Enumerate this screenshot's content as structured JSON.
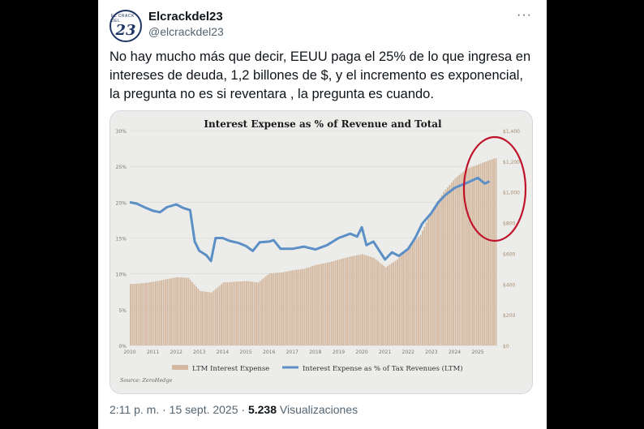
{
  "author": {
    "name": "Elcrackdel23",
    "handle": "@elcrackdel23",
    "avatar_text": "23",
    "avatar_small_text": "EL CRACK DEL"
  },
  "tweet_text": "No hay mucho más que decir, EEUU paga el 25% de lo que ingresa en intereses de deuda, 1,2 billones de $, y el incremento es exponencial, la pregunta no es si reventara , la pregunta es cuando.",
  "more_icon": "more-horizontal-icon",
  "meta": {
    "time_date": "2:11 p. m. · 15 sept. 2025 · ",
    "views_count": "5.238",
    "views_label": " Visualizaciones"
  },
  "colors": {
    "bar": "#d4b9a0",
    "line": "#5b8fc5",
    "annotation": "#c0142a",
    "chart_bg": "#ececea"
  },
  "chart_data": {
    "type": "bar+line",
    "title": "Interest Expense as % of Revenue and Total",
    "source": "Source: ZeroHedge",
    "x_ticks": [
      "2010",
      "2011",
      "2012",
      "2013",
      "2014",
      "2015",
      "2016",
      "2017",
      "2018",
      "2019",
      "2020",
      "2021",
      "2022",
      "2023",
      "2024",
      "2025"
    ],
    "xlim": [
      2010,
      2025.8
    ],
    "y_left_ticks": [
      "30%",
      "25%",
      "20%",
      "15%",
      "10%",
      "5%",
      "0%"
    ],
    "y_left_range": [
      0,
      30
    ],
    "y_right_ticks": [
      "$1,400",
      "$1,200",
      "$1,000",
      "$800",
      "$600",
      "$400",
      "$200",
      "$0"
    ],
    "y_right_range": [
      0,
      1400
    ],
    "legend_position": "bottom",
    "series": [
      {
        "name": "LTM Interest Expense",
        "type": "bar",
        "axis": "right",
        "x": [
          2010,
          2010.5,
          2011,
          2011.5,
          2012,
          2012.5,
          2013,
          2013.5,
          2014,
          2014.5,
          2015,
          2015.5,
          2016,
          2016.5,
          2017,
          2017.5,
          2018,
          2018.5,
          2019,
          2019.5,
          2020,
          2020.5,
          2021,
          2021.5,
          2022,
          2022.5,
          2023,
          2023.5,
          2024,
          2024.5,
          2025,
          2025.7
        ],
        "values": [
          400,
          405,
          415,
          430,
          445,
          440,
          355,
          345,
          410,
          415,
          420,
          410,
          470,
          475,
          490,
          500,
          525,
          540,
          560,
          580,
          595,
          570,
          510,
          560,
          640,
          720,
          880,
          1000,
          1090,
          1150,
          1180,
          1220
        ]
      },
      {
        "name": "Interest Expense as % of Tax Revenues (LTM)",
        "type": "line",
        "axis": "left",
        "x": [
          2010,
          2010.3,
          2010.7,
          2011,
          2011.3,
          2011.6,
          2012,
          2012.3,
          2012.6,
          2012.8,
          2013,
          2013.3,
          2013.5,
          2013.7,
          2014,
          2014.3,
          2014.7,
          2015,
          2015.3,
          2015.6,
          2016,
          2016.2,
          2016.5,
          2017,
          2017.5,
          2018,
          2018.5,
          2019,
          2019.5,
          2019.8,
          2020,
          2020.2,
          2020.5,
          2021,
          2021.3,
          2021.6,
          2022,
          2022.3,
          2022.6,
          2023,
          2023.3,
          2023.6,
          2024,
          2024.3,
          2024.6,
          2025,
          2025.3,
          2025.5
        ],
        "values": [
          20,
          19.8,
          19.2,
          18.8,
          18.6,
          19.3,
          19.7,
          19.2,
          18.9,
          14.5,
          13.2,
          12.6,
          11.8,
          15.0,
          15.0,
          14.6,
          14.3,
          13.9,
          13.2,
          14.4,
          14.5,
          14.7,
          13.5,
          13.5,
          13.8,
          13.4,
          14.0,
          15.0,
          15.6,
          15.2,
          16.5,
          14.0,
          14.5,
          12.0,
          13.0,
          12.5,
          13.5,
          15.0,
          17.0,
          18.5,
          20.0,
          21.0,
          22.0,
          22.4,
          22.8,
          23.4,
          22.6,
          22.9
        ]
      }
    ]
  }
}
